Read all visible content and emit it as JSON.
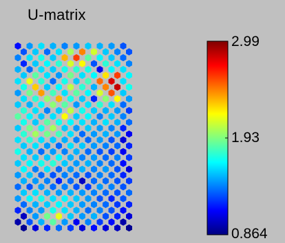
{
  "chart_data": {
    "type": "heatmap",
    "title": "U-matrix",
    "colorbar": {
      "min": 0.864,
      "max": 2.99,
      "ticks": [
        "2.99",
        "1.93",
        "0.864"
      ],
      "colormap": "jet"
    },
    "grid": {
      "shape": "hexagonal",
      "rows": 32,
      "cols": 10
    },
    "values": [
      [
        1.15,
        1.45,
        1.6,
        1.5,
        1.4,
        1.45,
        1.55,
        1.5,
        1.45,
        1.3
      ],
      [
        1.3,
        1.55,
        1.35,
        1.6,
        2.0,
        2.45,
        2.1,
        1.55,
        1.4,
        1.3
      ],
      [
        1.4,
        1.6,
        1.7,
        1.55,
        2.35,
        2.6,
        1.85,
        1.65,
        1.55,
        1.35
      ],
      [
        1.2,
        1.55,
        1.65,
        1.75,
        2.1,
        2.2,
        1.3,
        1.75,
        1.6,
        1.4
      ],
      [
        1.5,
        1.35,
        1.6,
        1.55,
        1.7,
        1.75,
        1.7,
        1.1,
        1.65,
        1.6
      ],
      [
        1.55,
        1.85,
        1.6,
        1.45,
        1.9,
        1.6,
        1.65,
        2.25,
        2.6,
        1.65
      ],
      [
        1.6,
        2.15,
        1.75,
        1.35,
        1.7,
        1.55,
        1.8,
        2.5,
        2.8,
        1.6
      ],
      [
        1.7,
        2.3,
        1.55,
        1.65,
        2.05,
        1.75,
        1.5,
        2.45,
        2.85,
        1.7
      ],
      [
        1.45,
        1.9,
        2.4,
        1.8,
        1.6,
        1.85,
        1.65,
        2.1,
        2.55,
        1.55
      ],
      [
        1.6,
        1.75,
        1.95,
        2.35,
        1.7,
        1.55,
        1.2,
        1.95,
        2.2,
        1.45
      ],
      [
        1.55,
        1.5,
        1.65,
        1.95,
        1.85,
        1.45,
        1.6,
        1.75,
        1.6,
        1.35
      ],
      [
        1.75,
        1.6,
        1.4,
        1.55,
        2.05,
        1.7,
        1.55,
        1.5,
        1.45,
        1.25
      ],
      [
        1.85,
        1.65,
        1.55,
        1.6,
        2.2,
        1.55,
        1.65,
        1.4,
        1.55,
        1.4
      ],
      [
        1.7,
        1.55,
        1.85,
        1.7,
        1.65,
        1.6,
        1.5,
        1.6,
        1.5,
        1.35
      ],
      [
        1.55,
        1.9,
        1.7,
        2.0,
        1.55,
        1.45,
        1.55,
        1.45,
        1.4,
        1.2
      ],
      [
        1.75,
        2.0,
        1.9,
        1.8,
        1.6,
        1.35,
        1.45,
        1.5,
        1.45,
        1.1
      ],
      [
        1.6,
        1.75,
        1.6,
        1.55,
        1.5,
        1.4,
        1.35,
        1.45,
        1.3,
        1.05
      ],
      [
        1.55,
        1.6,
        1.45,
        1.35,
        1.6,
        1.55,
        1.45,
        1.4,
        1.35,
        1.2
      ],
      [
        1.7,
        1.5,
        1.35,
        1.45,
        1.4,
        1.5,
        1.35,
        1.3,
        1.25,
        1.1
      ],
      [
        1.6,
        1.55,
        1.55,
        1.65,
        1.5,
        1.4,
        1.45,
        1.35,
        1.4,
        1.25
      ],
      [
        1.55,
        1.65,
        1.7,
        1.75,
        1.55,
        1.45,
        1.5,
        1.4,
        1.35,
        1.15
      ],
      [
        1.65,
        1.4,
        1.6,
        1.35,
        1.45,
        1.5,
        1.4,
        1.45,
        1.3,
        1.05
      ],
      [
        1.45,
        1.55,
        1.35,
        1.3,
        1.4,
        1.35,
        1.3,
        1.4,
        1.35,
        1.2
      ],
      [
        1.5,
        1.45,
        1.4,
        1.2,
        1.35,
        1.0,
        1.35,
        1.35,
        1.3,
        1.25
      ],
      [
        1.35,
        1.3,
        1.45,
        1.35,
        1.4,
        1.3,
        1.25,
        1.45,
        1.4,
        1.3
      ],
      [
        1.55,
        1.6,
        1.5,
        1.45,
        1.5,
        1.45,
        1.4,
        1.35,
        1.3,
        1.35
      ],
      [
        1.45,
        1.65,
        1.7,
        1.6,
        1.65,
        1.55,
        1.45,
        1.3,
        1.2,
        1.3
      ],
      [
        1.35,
        1.5,
        1.55,
        1.65,
        1.55,
        1.45,
        1.4,
        1.35,
        1.25,
        1.2
      ],
      [
        1.2,
        1.4,
        1.45,
        1.7,
        1.6,
        1.5,
        1.35,
        1.4,
        1.3,
        1.15
      ],
      [
        1.0,
        1.45,
        1.9,
        2.15,
        1.55,
        1.45,
        1.5,
        1.3,
        1.2,
        1.05
      ],
      [
        0.95,
        1.3,
        1.5,
        1.85,
        1.45,
        1.1,
        1.4,
        1.25,
        1.15,
        0.95
      ],
      [
        0.9,
        1.05,
        1.2,
        1.35,
        1.25,
        1.05,
        1.15,
        1.05,
        1.0,
        0.9
      ]
    ]
  }
}
